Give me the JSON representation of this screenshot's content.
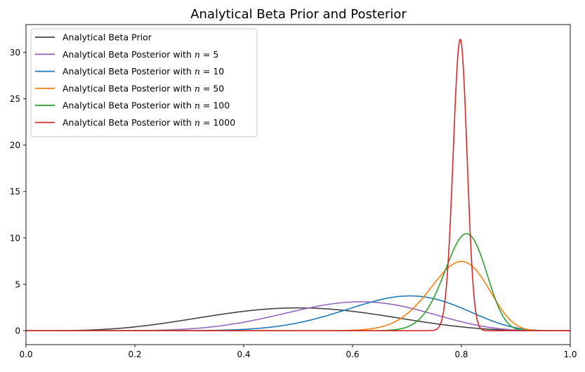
{
  "chart_data": {
    "type": "line",
    "title": "Analytical Beta Prior and Posterior",
    "xlabel": "",
    "ylabel": "",
    "xlim": [
      0.0,
      1.0
    ],
    "ylim": [
      -1.5,
      33.0
    ],
    "xticks": [
      "0.0",
      "0.2",
      "0.4",
      "0.6",
      "0.8",
      "1.0"
    ],
    "yticks": [
      "0",
      "5",
      "10",
      "15",
      "20",
      "25",
      "30"
    ],
    "grid": false,
    "legend_position": "top-left",
    "series": [
      {
        "name": "Analytical Beta Prior",
        "color": "#444444",
        "alpha": 5,
        "beta": 5,
        "x": [
          0.0,
          0.1,
          0.2,
          0.3,
          0.4,
          0.5,
          0.6,
          0.7,
          0.8,
          0.9,
          1.0
        ],
        "y": [
          0.0,
          0.04,
          0.41,
          1.21,
          2.0,
          2.46,
          2.0,
          1.21,
          0.41,
          0.04,
          0.0
        ]
      },
      {
        "name": "Analytical Beta Posterior with n = 5",
        "label_prefix": "Analytical Beta Posterior with ",
        "label_n": "5",
        "color": "#9467bd",
        "alpha": 9,
        "beta": 6,
        "x": [
          0.0,
          0.3,
          0.4,
          0.5,
          0.6,
          0.7,
          0.8,
          0.9,
          1.0
        ],
        "y": [
          0.0,
          0.25,
          0.93,
          2.1,
          3.0,
          3.25,
          2.2,
          0.6,
          0.0
        ]
      },
      {
        "name": "Analytical Beta Posterior with n = 10",
        "label_prefix": "Analytical Beta Posterior with ",
        "label_n": "10",
        "color": "#1f77b4",
        "alpha": 13,
        "beta": 6,
        "x": [
          0.0,
          0.4,
          0.5,
          0.6,
          0.7,
          0.72,
          0.8,
          0.9,
          1.0
        ],
        "y": [
          0.0,
          0.47,
          1.4,
          2.9,
          3.87,
          3.9,
          3.0,
          0.9,
          0.0
        ]
      },
      {
        "name": "Analytical Beta Posterior with n = 50",
        "label_prefix": "Analytical Beta Posterior with ",
        "label_n": "50",
        "color": "#ff7f0e",
        "alpha": 45,
        "beta": 12,
        "x": [
          0.0,
          0.6,
          0.7,
          0.75,
          0.795,
          0.85,
          0.9,
          1.0
        ],
        "y": [
          0.0,
          0.12,
          3.0,
          5.8,
          7.55,
          4.5,
          0.9,
          0.0
        ]
      },
      {
        "name": "Analytical Beta Posterior with n = 100",
        "label_prefix": "Analytical Beta Posterior with ",
        "label_n": "100",
        "color": "#2ca02c",
        "alpha": 86,
        "beta": 21,
        "x": [
          0.0,
          0.7,
          0.75,
          0.804,
          0.85,
          0.9,
          1.0
        ],
        "y": [
          0.0,
          1.2,
          5.2,
          10.5,
          6.0,
          0.6,
          0.0
        ]
      },
      {
        "name": "Analytical Beta Posterior with n = 1000",
        "label_prefix": "Analytical Beta Posterior with ",
        "label_n": "1000",
        "color": "#d62728",
        "alpha": 798,
        "beta": 203,
        "x": [
          0.0,
          0.75,
          0.77,
          0.797,
          0.82,
          0.84,
          1.0
        ],
        "y": [
          0.0,
          0.12,
          4.5,
          31.4,
          6.0,
          0.1,
          0.0
        ]
      }
    ]
  }
}
